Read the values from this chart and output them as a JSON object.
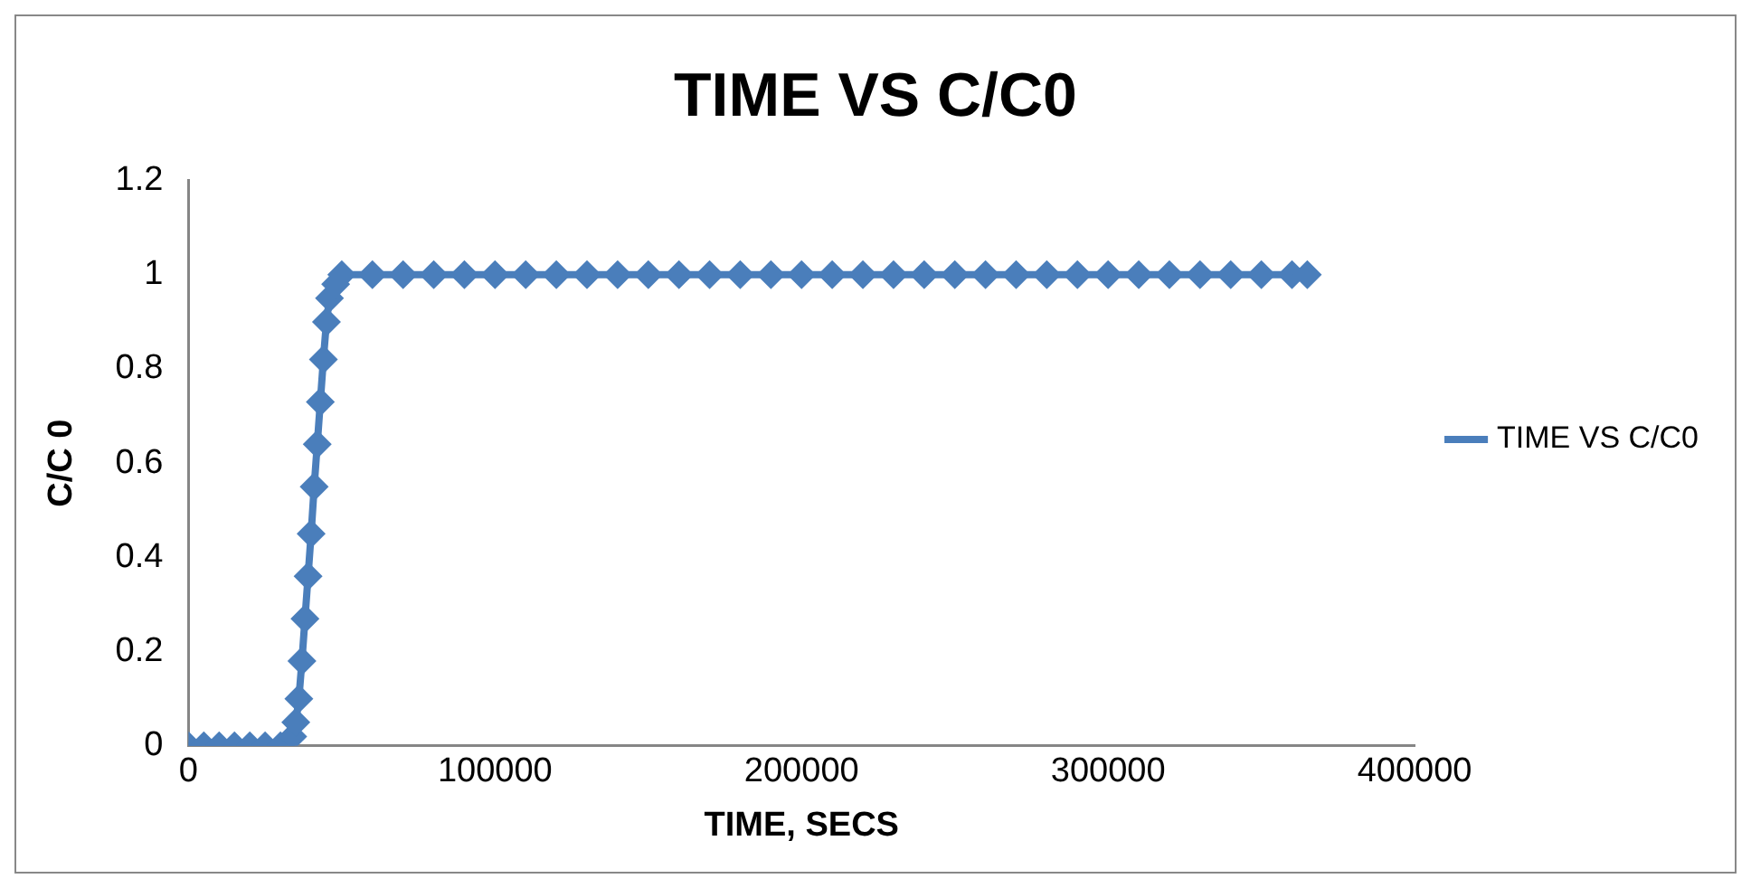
{
  "chart_data": {
    "type": "line",
    "title": "TIME VS C/C0",
    "xlabel": "TIME, SECS",
    "ylabel": "C/C 0",
    "xlim": [
      0,
      400000
    ],
    "xticks": [
      0,
      100000,
      200000,
      300000,
      400000
    ],
    "ylim": [
      0,
      1.2
    ],
    "yticks": [
      0,
      0.2,
      0.4,
      0.6,
      0.8,
      1,
      1.2
    ],
    "grid": false,
    "legend": "right",
    "marker": "diamond",
    "line_style": "solid",
    "x": [
      0,
      5000,
      10000,
      15000,
      20000,
      25000,
      30000,
      34000,
      35000,
      36000,
      37000,
      38000,
      39000,
      40000,
      41000,
      42000,
      43000,
      44000,
      45000,
      46000,
      48000,
      50000,
      60000,
      70000,
      80000,
      90000,
      100000,
      110000,
      120000,
      130000,
      140000,
      150000,
      160000,
      170000,
      180000,
      190000,
      200000,
      210000,
      220000,
      230000,
      240000,
      250000,
      260000,
      270000,
      280000,
      290000,
      300000,
      310000,
      320000,
      330000,
      340000,
      350000,
      360000,
      365000
    ],
    "series": [
      {
        "name": "TIME VS C/C0",
        "color": "#4a7ebb",
        "values": [
          0,
          0,
          0,
          0,
          0,
          0,
          0,
          0.02,
          0.05,
          0.1,
          0.18,
          0.27,
          0.36,
          0.45,
          0.55,
          0.64,
          0.73,
          0.82,
          0.9,
          0.95,
          0.98,
          1,
          1,
          1,
          1,
          1,
          1,
          1,
          1,
          1,
          1,
          1,
          1,
          1,
          1,
          1,
          1,
          1,
          1,
          1,
          1,
          1,
          1,
          1,
          1,
          1,
          1,
          1,
          1,
          1,
          1,
          1,
          1,
          1
        ]
      }
    ]
  }
}
